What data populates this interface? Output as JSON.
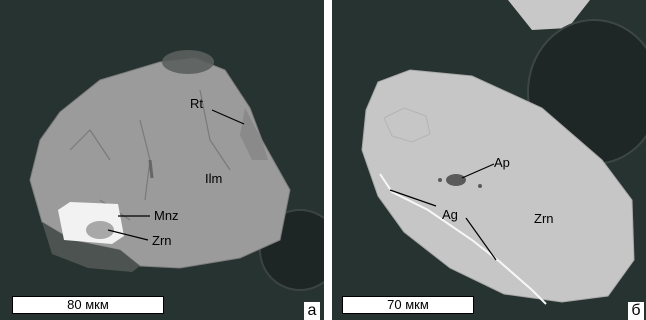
{
  "panels": [
    {
      "id": "a",
      "letter": "а",
      "scale_bar": "80 мкм",
      "labels": {
        "rt": "Rt",
        "ilm": "Ilm",
        "mnz": "Mnz",
        "zrn": "Zrn"
      }
    },
    {
      "id": "b",
      "letter": "б",
      "scale_bar": "70 мкм",
      "labels": {
        "ap": "Ap",
        "ag": "Ag",
        "zrn": "Zrn"
      }
    }
  ],
  "colors": {
    "background": "#273330",
    "ilmenite": "#9b9b9b",
    "zircon_large": "#c6c6c6",
    "monazite": "#f2f2f2",
    "rim_dark": "#4c5350",
    "apatite": "#5a5a5a"
  }
}
